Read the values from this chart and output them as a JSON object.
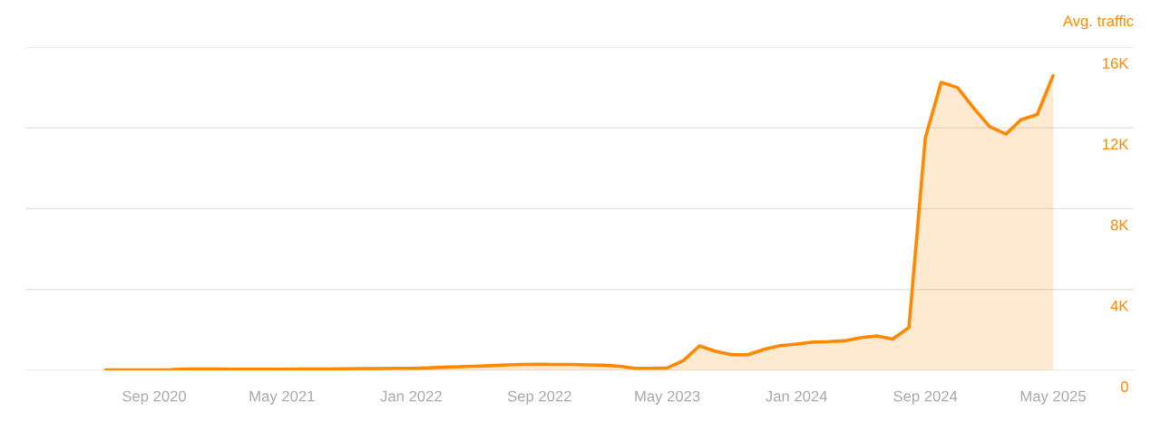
{
  "chart_data": {
    "type": "area",
    "ylabel": "Avg. traffic",
    "x": [
      "2020-06",
      "2020-07",
      "2020-08",
      "2020-09",
      "2020-10",
      "2020-11",
      "2020-12",
      "2021-01",
      "2021-02",
      "2021-03",
      "2021-04",
      "2021-05",
      "2021-06",
      "2021-07",
      "2021-08",
      "2021-09",
      "2021-10",
      "2021-11",
      "2021-12",
      "2022-01",
      "2022-02",
      "2022-03",
      "2022-04",
      "2022-05",
      "2022-06",
      "2022-07",
      "2022-08",
      "2022-09",
      "2022-10",
      "2022-11",
      "2022-12",
      "2023-01",
      "2023-02",
      "2023-03",
      "2023-04",
      "2023-05",
      "2023-06",
      "2023-07",
      "2023-08",
      "2023-09",
      "2023-10",
      "2023-11",
      "2023-12",
      "2024-01",
      "2024-02",
      "2024-03",
      "2024-04",
      "2024-05",
      "2024-06",
      "2024-07",
      "2024-08",
      "2024-09",
      "2024-10",
      "2024-11",
      "2024-12",
      "2025-01",
      "2025-02",
      "2025-03",
      "2025-04",
      "2025-05"
    ],
    "series": [
      {
        "color": "#ff8800",
        "values": [
          20,
          20,
          20,
          20,
          30,
          60,
          70,
          60,
          50,
          50,
          50,
          50,
          60,
          60,
          70,
          80,
          90,
          90,
          100,
          100,
          120,
          150,
          180,
          200,
          230,
          270,
          290,
          300,
          290,
          290,
          270,
          250,
          200,
          100,
          100,
          120,
          490,
          1210,
          940,
          770,
          770,
          1040,
          1220,
          1300,
          1400,
          1420,
          1460,
          1610,
          1700,
          1550,
          2120,
          11500,
          14250,
          14000,
          13000,
          12060,
          11690,
          12400,
          12660,
          14580
        ]
      }
    ],
    "xlim": [
      "2020-01",
      "2025-10"
    ],
    "xticks": [
      {
        "value": "2020-09",
        "label": "Sep 2020"
      },
      {
        "value": "2021-05",
        "label": "May 2021"
      },
      {
        "value": "2022-01",
        "label": "Jan 2022"
      },
      {
        "value": "2022-09",
        "label": "Sep 2022"
      },
      {
        "value": "2023-05",
        "label": "May 2023"
      },
      {
        "value": "2024-01",
        "label": "Jan 2024"
      },
      {
        "value": "2024-09",
        "label": "Sep 2024"
      },
      {
        "value": "2025-05",
        "label": "May 2025"
      }
    ],
    "ylim": [
      0,
      16000
    ],
    "yticks": [
      0,
      {
        "value": 4000,
        "label": "4K"
      },
      {
        "value": 8000,
        "label": "8K"
      },
      {
        "value": 12000,
        "label": "12K"
      },
      {
        "value": 16000,
        "label": "16K"
      }
    ],
    "grid": "y",
    "legend": false
  }
}
